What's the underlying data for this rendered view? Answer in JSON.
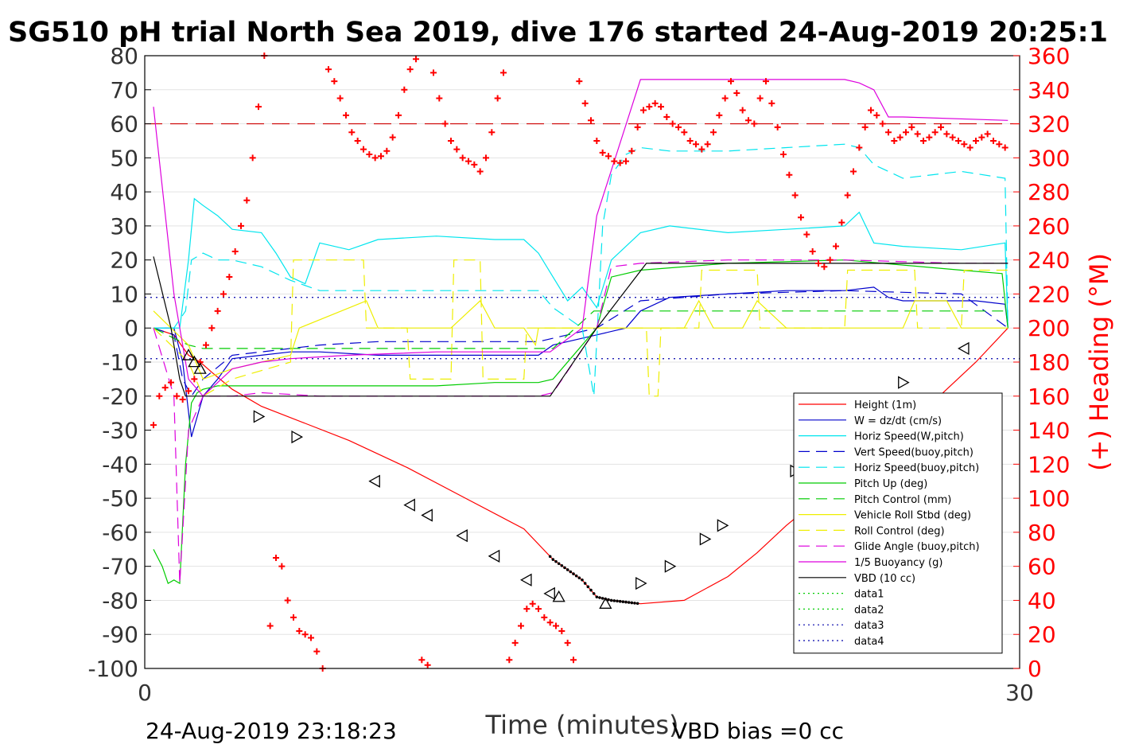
{
  "chart_data": {
    "type": "line",
    "title": "SG510 pH trial North Sea 2019, dive 176 started 24-Aug-2019 20:25:1",
    "xlabel": "Time (minutes)",
    "ylabel_right": "(+) Heading (°M)",
    "footer_left": "24-Aug-2019 23:18:23",
    "footer_right": "VBD bias =0 cc",
    "xlim": [
      0,
      30
    ],
    "ylim": [
      -100,
      80
    ],
    "y2lim": [
      0,
      360
    ],
    "xticks": [
      "0",
      "30"
    ],
    "yticks": [
      "80",
      "70",
      "60",
      "50",
      "40",
      "30",
      "20",
      "10",
      "0",
      "-10",
      "-20",
      "-30",
      "-40",
      "-50",
      "-60",
      "-70",
      "-80",
      "-90",
      "-100"
    ],
    "y2ticks": [
      "360",
      "340",
      "320",
      "300",
      "280",
      "260",
      "240",
      "220",
      "200",
      "180",
      "160",
      "140",
      "120",
      "100",
      "80",
      "60",
      "40",
      "20",
      "0"
    ],
    "grid": "horizontal",
    "legend_position": "lower-right inside",
    "legend": [
      {
        "label": "Height (1m)",
        "color": "#ff0000",
        "dash": "solid"
      },
      {
        "label": "W = dz/dt (cm/s)",
        "color": "#0000cc",
        "dash": "solid"
      },
      {
        "label": "Horiz Speed(W,pitch)",
        "color": "#00e5ee",
        "dash": "solid"
      },
      {
        "label": "Vert Speed(buoy,pitch)",
        "color": "#0000cc",
        "dash": "dashed"
      },
      {
        "label": "Horiz Speed(buoy,pitch)",
        "color": "#00e5ee",
        "dash": "dashed"
      },
      {
        "label": "Pitch Up (deg)",
        "color": "#00cc00",
        "dash": "solid"
      },
      {
        "label": "Pitch Control (mm)",
        "color": "#00cc00",
        "dash": "dashed"
      },
      {
        "label": "Vehicle Roll Stbd (deg)",
        "color": "#eeee00",
        "dash": "solid"
      },
      {
        "label": "Roll Control (deg)",
        "color": "#eeee00",
        "dash": "dashed"
      },
      {
        "label": "Glide Angle (buoy,pitch)",
        "color": "#dd00dd",
        "dash": "dashed"
      },
      {
        "label": "1/5 Buoyancy (g)",
        "color": "#dd00dd",
        "dash": "solid"
      },
      {
        "label": "VBD (10 cc)",
        "color": "#000000",
        "dash": "solid"
      },
      {
        "label": "data1",
        "color": "#00cc00",
        "dash": "dotted"
      },
      {
        "label": "data2",
        "color": "#00cc00",
        "dash": "dotted"
      },
      {
        "label": "data3",
        "color": "#0000aa",
        "dash": "dotted"
      },
      {
        "label": "data4",
        "color": "#0000aa",
        "dash": "dotted"
      }
    ],
    "reference_lines": [
      {
        "axis": "y2",
        "value": 320,
        "color": "#cc0000",
        "dash": "dashed"
      },
      {
        "axis": "y",
        "value": 9,
        "color": "#0000aa",
        "dash": "dotted"
      },
      {
        "axis": "y",
        "value": -9,
        "color": "#0000aa",
        "dash": "dotted"
      }
    ],
    "series": [
      {
        "name": "Height (1m)",
        "axis": "y",
        "color": "#ff0000",
        "dash": "solid",
        "x": [
          0.3,
          1.0,
          1.5,
          1.9,
          2.3,
          3.0,
          4.0,
          5.5,
          7.0,
          9.0,
          11.0,
          13.0,
          14.0,
          15.0,
          15.5,
          16.0,
          17.0,
          18.5,
          20.0,
          21.0,
          22.0,
          24.0,
          26.0,
          28.5,
          29.6
        ],
        "y": [
          0,
          -2,
          -8,
          -10,
          -13,
          -18,
          -23,
          -28,
          -33,
          -41,
          -50,
          -59,
          -68,
          -74,
          -79,
          -80,
          -81,
          -80,
          -73,
          -66,
          -58,
          -44,
          -30,
          -10,
          0
        ]
      },
      {
        "name": "W = dz/dt (cm/s)",
        "axis": "y",
        "color": "#0000cc",
        "dash": "solid",
        "x": [
          0.3,
          1.0,
          1.3,
          1.6,
          2.0,
          2.5,
          3.0,
          4.0,
          5.0,
          6.0,
          8.0,
          10.0,
          12.0,
          13.5,
          14.0,
          15.5,
          16.5,
          17.0,
          18.0,
          20.0,
          22.0,
          24.0,
          25.0,
          25.5,
          26.0,
          27.0,
          28.5,
          29.5,
          29.6
        ],
        "y": [
          0,
          0,
          -10,
          -32,
          -20,
          -15,
          -9,
          -8,
          -7,
          -7,
          -8,
          -8,
          -8,
          -8,
          -5,
          -2,
          0,
          5,
          9,
          10,
          11,
          11,
          12,
          9,
          8,
          8,
          8,
          7,
          0
        ]
      },
      {
        "name": "Horiz Speed(W,pitch)",
        "axis": "y",
        "color": "#00e5ee",
        "dash": "solid",
        "x": [
          0.3,
          1.2,
          1.5,
          1.7,
          2.0,
          2.5,
          3.0,
          4.0,
          4.5,
          5.0,
          5.5,
          6.0,
          7.0,
          8.0,
          10.0,
          12.0,
          13.0,
          13.5,
          14.0,
          14.5,
          15.0,
          15.5,
          16.0,
          17.0,
          18.0,
          20.0,
          22.0,
          24.0,
          24.5,
          25.0,
          26.0,
          28.0,
          29.5,
          29.6
        ],
        "y": [
          0,
          0,
          20,
          38,
          36,
          33,
          29,
          28,
          22,
          15,
          13,
          25,
          23,
          26,
          27,
          26,
          26,
          22,
          15,
          8,
          12,
          6,
          20,
          28,
          30,
          28,
          29,
          30,
          34,
          25,
          24,
          23,
          25,
          0
        ]
      },
      {
        "name": "Vert Speed(buoy,pitch)",
        "axis": "y",
        "color": "#0000cc",
        "dash": "dashed",
        "x": [
          0.3,
          1.0,
          1.3,
          1.6,
          2.0,
          3.0,
          4.0,
          6.0,
          8.0,
          10.0,
          12.0,
          13.5,
          14.0,
          15.5,
          17.0,
          20.0,
          24.0,
          28.0,
          29.6
        ],
        "y": [
          0,
          -2,
          -15,
          -20,
          -15,
          -8,
          -7,
          -5,
          -4,
          -4,
          -4,
          -4,
          -3,
          0,
          8,
          10,
          11,
          10,
          0
        ]
      },
      {
        "name": "Horiz Speed(buoy,pitch)",
        "axis": "y",
        "color": "#00e5ee",
        "dash": "dashed",
        "x": [
          0.3,
          1.0,
          1.4,
          1.6,
          2.0,
          2.5,
          3.0,
          4.0,
          5.0,
          6.0,
          8.0,
          10.0,
          12.0,
          13.5,
          14.0,
          15.0,
          15.4,
          15.7,
          16.0,
          16.5,
          17.0,
          18.0,
          20.0,
          22.0,
          24.0,
          24.5,
          25.0,
          26.0,
          28.0,
          29.5,
          29.6
        ],
        "y": [
          0,
          0,
          5,
          20,
          22,
          20,
          20,
          18,
          14,
          11,
          11,
          11,
          11,
          11,
          6,
          0,
          -20,
          30,
          45,
          51,
          53,
          52,
          52,
          53,
          54,
          53,
          48,
          44,
          46,
          44,
          0
        ]
      },
      {
        "name": "Pitch Up (deg)",
        "axis": "y",
        "color": "#00cc00",
        "dash": "solid",
        "x": [
          0.3,
          0.6,
          0.8,
          1.0,
          1.2,
          1.4,
          1.6,
          1.8,
          2.0,
          2.5,
          3.0,
          4.0,
          6.0,
          8.0,
          10.0,
          12.0,
          13.5,
          14.0,
          15.5,
          16.0,
          17.0,
          20.0,
          24.0,
          28.0,
          29.4,
          29.6
        ],
        "y": [
          -65,
          -70,
          -75,
          -74,
          -75,
          -40,
          -22,
          -19,
          -18,
          -17,
          -17,
          -17,
          -17,
          -17,
          -17,
          -16,
          -16,
          -15,
          0,
          15,
          17,
          19,
          20,
          17,
          16,
          0
        ]
      },
      {
        "name": "Pitch Control (mm)",
        "axis": "y",
        "color": "#00cc00",
        "dash": "dashed",
        "x": [
          0.3,
          1.0,
          1.5,
          2.0,
          3.0,
          13.9,
          14.0,
          15.4,
          15.5,
          29.6
        ],
        "y": [
          0,
          -3,
          -5,
          -6,
          -6,
          -6,
          -6,
          5,
          5,
          5
        ]
      },
      {
        "name": "Vehicle Roll Stbd (deg)",
        "axis": "y",
        "color": "#eeee00",
        "dash": "solid",
        "x": [
          0.3,
          1.5,
          2.0,
          3.0,
          4.0,
          5.0,
          5.3,
          7.6,
          8.0,
          10.0,
          10.5,
          11.5,
          12.0,
          13.0,
          13.4,
          13.5,
          15.5,
          17.0,
          18.5,
          19.0,
          19.5,
          20.5,
          21.0,
          22.0,
          22.5,
          24.0,
          26.0,
          26.4,
          27.5,
          28.0,
          29.5,
          29.6
        ],
        "y": [
          5,
          -5,
          -15,
          -12,
          -10,
          -8,
          0,
          8,
          0,
          0,
          0,
          8,
          0,
          0,
          -5,
          0,
          0,
          0,
          0,
          8,
          0,
          0,
          8,
          0,
          0,
          0,
          0,
          8,
          8,
          0,
          0,
          0
        ]
      },
      {
        "name": "Roll Control (deg)",
        "axis": "y",
        "color": "#eeee00",
        "dash": "dashed",
        "x": [
          0.3,
          1.5,
          2.0,
          3.0,
          5.0,
          5.1,
          7.5,
          7.6,
          9.0,
          9.1,
          10.5,
          10.6,
          11.5,
          11.6,
          13.0,
          13.1,
          15.0,
          17.2,
          17.3,
          17.6,
          17.7,
          18.0,
          19.0,
          19.1,
          21.0,
          21.1,
          24.0,
          24.1,
          26.4,
          26.5,
          28.0,
          28.1,
          29.6
        ],
        "y": [
          0,
          -10,
          -20,
          -15,
          -10,
          20,
          20,
          0,
          0,
          -15,
          -15,
          20,
          20,
          -15,
          -15,
          0,
          0,
          0,
          -20,
          -20,
          0,
          0,
          0,
          17,
          17,
          0,
          0,
          17,
          17,
          0,
          0,
          17,
          17
        ]
      },
      {
        "name": "Glide Angle (buoy,pitch)",
        "axis": "y",
        "color": "#dd00dd",
        "dash": "dashed",
        "x": [
          0.3,
          1.0,
          1.2,
          1.5,
          2.0,
          2.5,
          3.0,
          4.0,
          6.0,
          8.0,
          10.0,
          12.0,
          13.5,
          14.0,
          15.5,
          16.0,
          17.0,
          20.0,
          24.0,
          28.0,
          29.6
        ],
        "y": [
          0,
          -20,
          -75,
          -30,
          -20,
          -20,
          -20,
          -19,
          -20,
          -20,
          -20,
          -20,
          -20,
          -19,
          0,
          18,
          19,
          20,
          20,
          19,
          19
        ]
      },
      {
        "name": "1/5 Buoyancy (g)",
        "axis": "y",
        "color": "#dd00dd",
        "dash": "solid",
        "x": [
          0.3,
          1.0,
          1.5,
          2.0,
          3.0,
          4.0,
          5.0,
          7.0,
          10.0,
          13.9,
          15.0,
          15.5,
          17.0,
          20.0,
          22.0,
          24.0,
          24.5,
          25.0,
          25.5,
          26.0,
          29.6
        ],
        "y": [
          65,
          10,
          -15,
          -20,
          -12,
          -10,
          -9,
          -8,
          -7,
          -7,
          0,
          33,
          73,
          73,
          73,
          73,
          72,
          70,
          62,
          62,
          61
        ]
      },
      {
        "name": "VBD (10 cc)",
        "axis": "y",
        "color": "#000000",
        "dash": "solid",
        "x": [
          0.3,
          0.9,
          1.2,
          1.4,
          1.7,
          2.2,
          3.0,
          13.9,
          15.5,
          17.2,
          29.6
        ],
        "y": [
          21,
          0,
          -15,
          -20,
          -20,
          -20,
          -20,
          -20,
          0,
          19,
          19
        ]
      }
    ],
    "markers_height": [
      {
        "x": 1.5,
        "y": -8,
        "dir": "up"
      },
      {
        "x": 1.7,
        "y": -10,
        "dir": "up"
      },
      {
        "x": 1.9,
        "y": -12,
        "dir": "up"
      },
      {
        "x": 3.9,
        "y": -26,
        "dir": "right"
      },
      {
        "x": 5.2,
        "y": -32,
        "dir": "right"
      },
      {
        "x": 7.9,
        "y": -45,
        "dir": "left"
      },
      {
        "x": 9.1,
        "y": -52,
        "dir": "left"
      },
      {
        "x": 9.7,
        "y": -55,
        "dir": "left"
      },
      {
        "x": 10.9,
        "y": -61,
        "dir": "left"
      },
      {
        "x": 12.0,
        "y": -67,
        "dir": "left"
      },
      {
        "x": 13.1,
        "y": -74,
        "dir": "left"
      },
      {
        "x": 13.9,
        "y": -78,
        "dir": "left"
      },
      {
        "x": 14.2,
        "y": -79,
        "dir": "up"
      },
      {
        "x": 15.8,
        "y": -81,
        "dir": "up"
      },
      {
        "x": 17.0,
        "y": -75,
        "dir": "right"
      },
      {
        "x": 18.0,
        "y": -70,
        "dir": "right"
      },
      {
        "x": 19.2,
        "y": -62,
        "dir": "right"
      },
      {
        "x": 19.8,
        "y": -58,
        "dir": "right"
      },
      {
        "x": 22.3,
        "y": -42,
        "dir": "right"
      },
      {
        "x": 26.0,
        "y": -16,
        "dir": "right"
      },
      {
        "x": 28.1,
        "y": -6,
        "dir": "left"
      }
    ],
    "heading_points": {
      "color": "#ff0000",
      "x": [
        0.3,
        0.5,
        0.7,
        0.9,
        1.1,
        1.3,
        1.5,
        1.7,
        1.9,
        2.1,
        2.3,
        2.5,
        2.7,
        2.9,
        3.1,
        3.3,
        3.5,
        3.7,
        3.9,
        4.1,
        4.3,
        4.5,
        4.7,
        4.9,
        5.1,
        5.3,
        5.5,
        5.7,
        5.9,
        6.1,
        6.3,
        6.5,
        6.7,
        6.9,
        7.1,
        7.3,
        7.5,
        7.7,
        7.9,
        8.1,
        8.3,
        8.5,
        8.7,
        8.9,
        9.1,
        9.3,
        9.5,
        9.7,
        9.9,
        10.1,
        10.3,
        10.5,
        10.7,
        10.9,
        11.1,
        11.3,
        11.5,
        11.7,
        11.9,
        12.1,
        12.3,
        12.5,
        12.7,
        12.9,
        13.1,
        13.3,
        13.5,
        13.7,
        13.9,
        14.1,
        14.3,
        14.5,
        14.7,
        14.9,
        15.1,
        15.3,
        15.5,
        15.7,
        15.9,
        16.1,
        16.3,
        16.5,
        16.7,
        16.9,
        17.1,
        17.3,
        17.5,
        17.7,
        17.9,
        18.1,
        18.3,
        18.5,
        18.7,
        18.9,
        19.1,
        19.3,
        19.5,
        19.7,
        19.9,
        20.1,
        20.3,
        20.5,
        20.7,
        20.9,
        21.1,
        21.3,
        21.5,
        21.7,
        21.9,
        22.1,
        22.3,
        22.5,
        22.7,
        22.9,
        23.1,
        23.3,
        23.5,
        23.7,
        23.9,
        24.1,
        24.3,
        24.5,
        24.7,
        24.9,
        25.1,
        25.3,
        25.5,
        25.7,
        25.9,
        26.1,
        26.3,
        26.5,
        26.7,
        26.9,
        27.1,
        27.3,
        27.5,
        27.7,
        27.9,
        28.1,
        28.3,
        28.5,
        28.7,
        28.9,
        29.1,
        29.3,
        29.5
      ],
      "y": [
        143,
        160,
        165,
        168,
        160,
        158,
        163,
        170,
        180,
        190,
        200,
        210,
        220,
        230,
        245,
        260,
        275,
        300,
        330,
        360,
        25,
        65,
        60,
        40,
        30,
        22,
        20,
        18,
        10,
        0,
        352,
        345,
        335,
        325,
        315,
        310,
        305,
        302,
        300,
        301,
        304,
        312,
        325,
        340,
        352,
        358,
        5,
        2,
        350,
        335,
        320,
        310,
        305,
        300,
        298,
        296,
        292,
        300,
        315,
        335,
        350,
        5,
        15,
        25,
        35,
        38,
        35,
        30,
        27,
        25,
        22,
        15,
        5,
        345,
        332,
        322,
        310,
        303,
        301,
        298,
        297,
        298,
        304,
        318,
        328,
        330,
        332,
        330,
        324,
        320,
        318,
        315,
        310,
        308,
        305,
        308,
        315,
        325,
        335,
        345,
        338,
        328,
        322,
        320,
        335,
        345,
        332,
        318,
        302,
        290,
        278,
        265,
        255,
        245,
        238,
        236,
        240,
        248,
        262,
        278,
        292,
        306,
        318,
        328,
        325,
        320,
        315,
        310,
        312,
        315,
        318,
        314,
        310,
        312,
        315,
        318,
        314,
        312,
        310,
        308,
        306,
        310,
        312,
        314,
        310,
        308,
        306
      ]
    }
  }
}
